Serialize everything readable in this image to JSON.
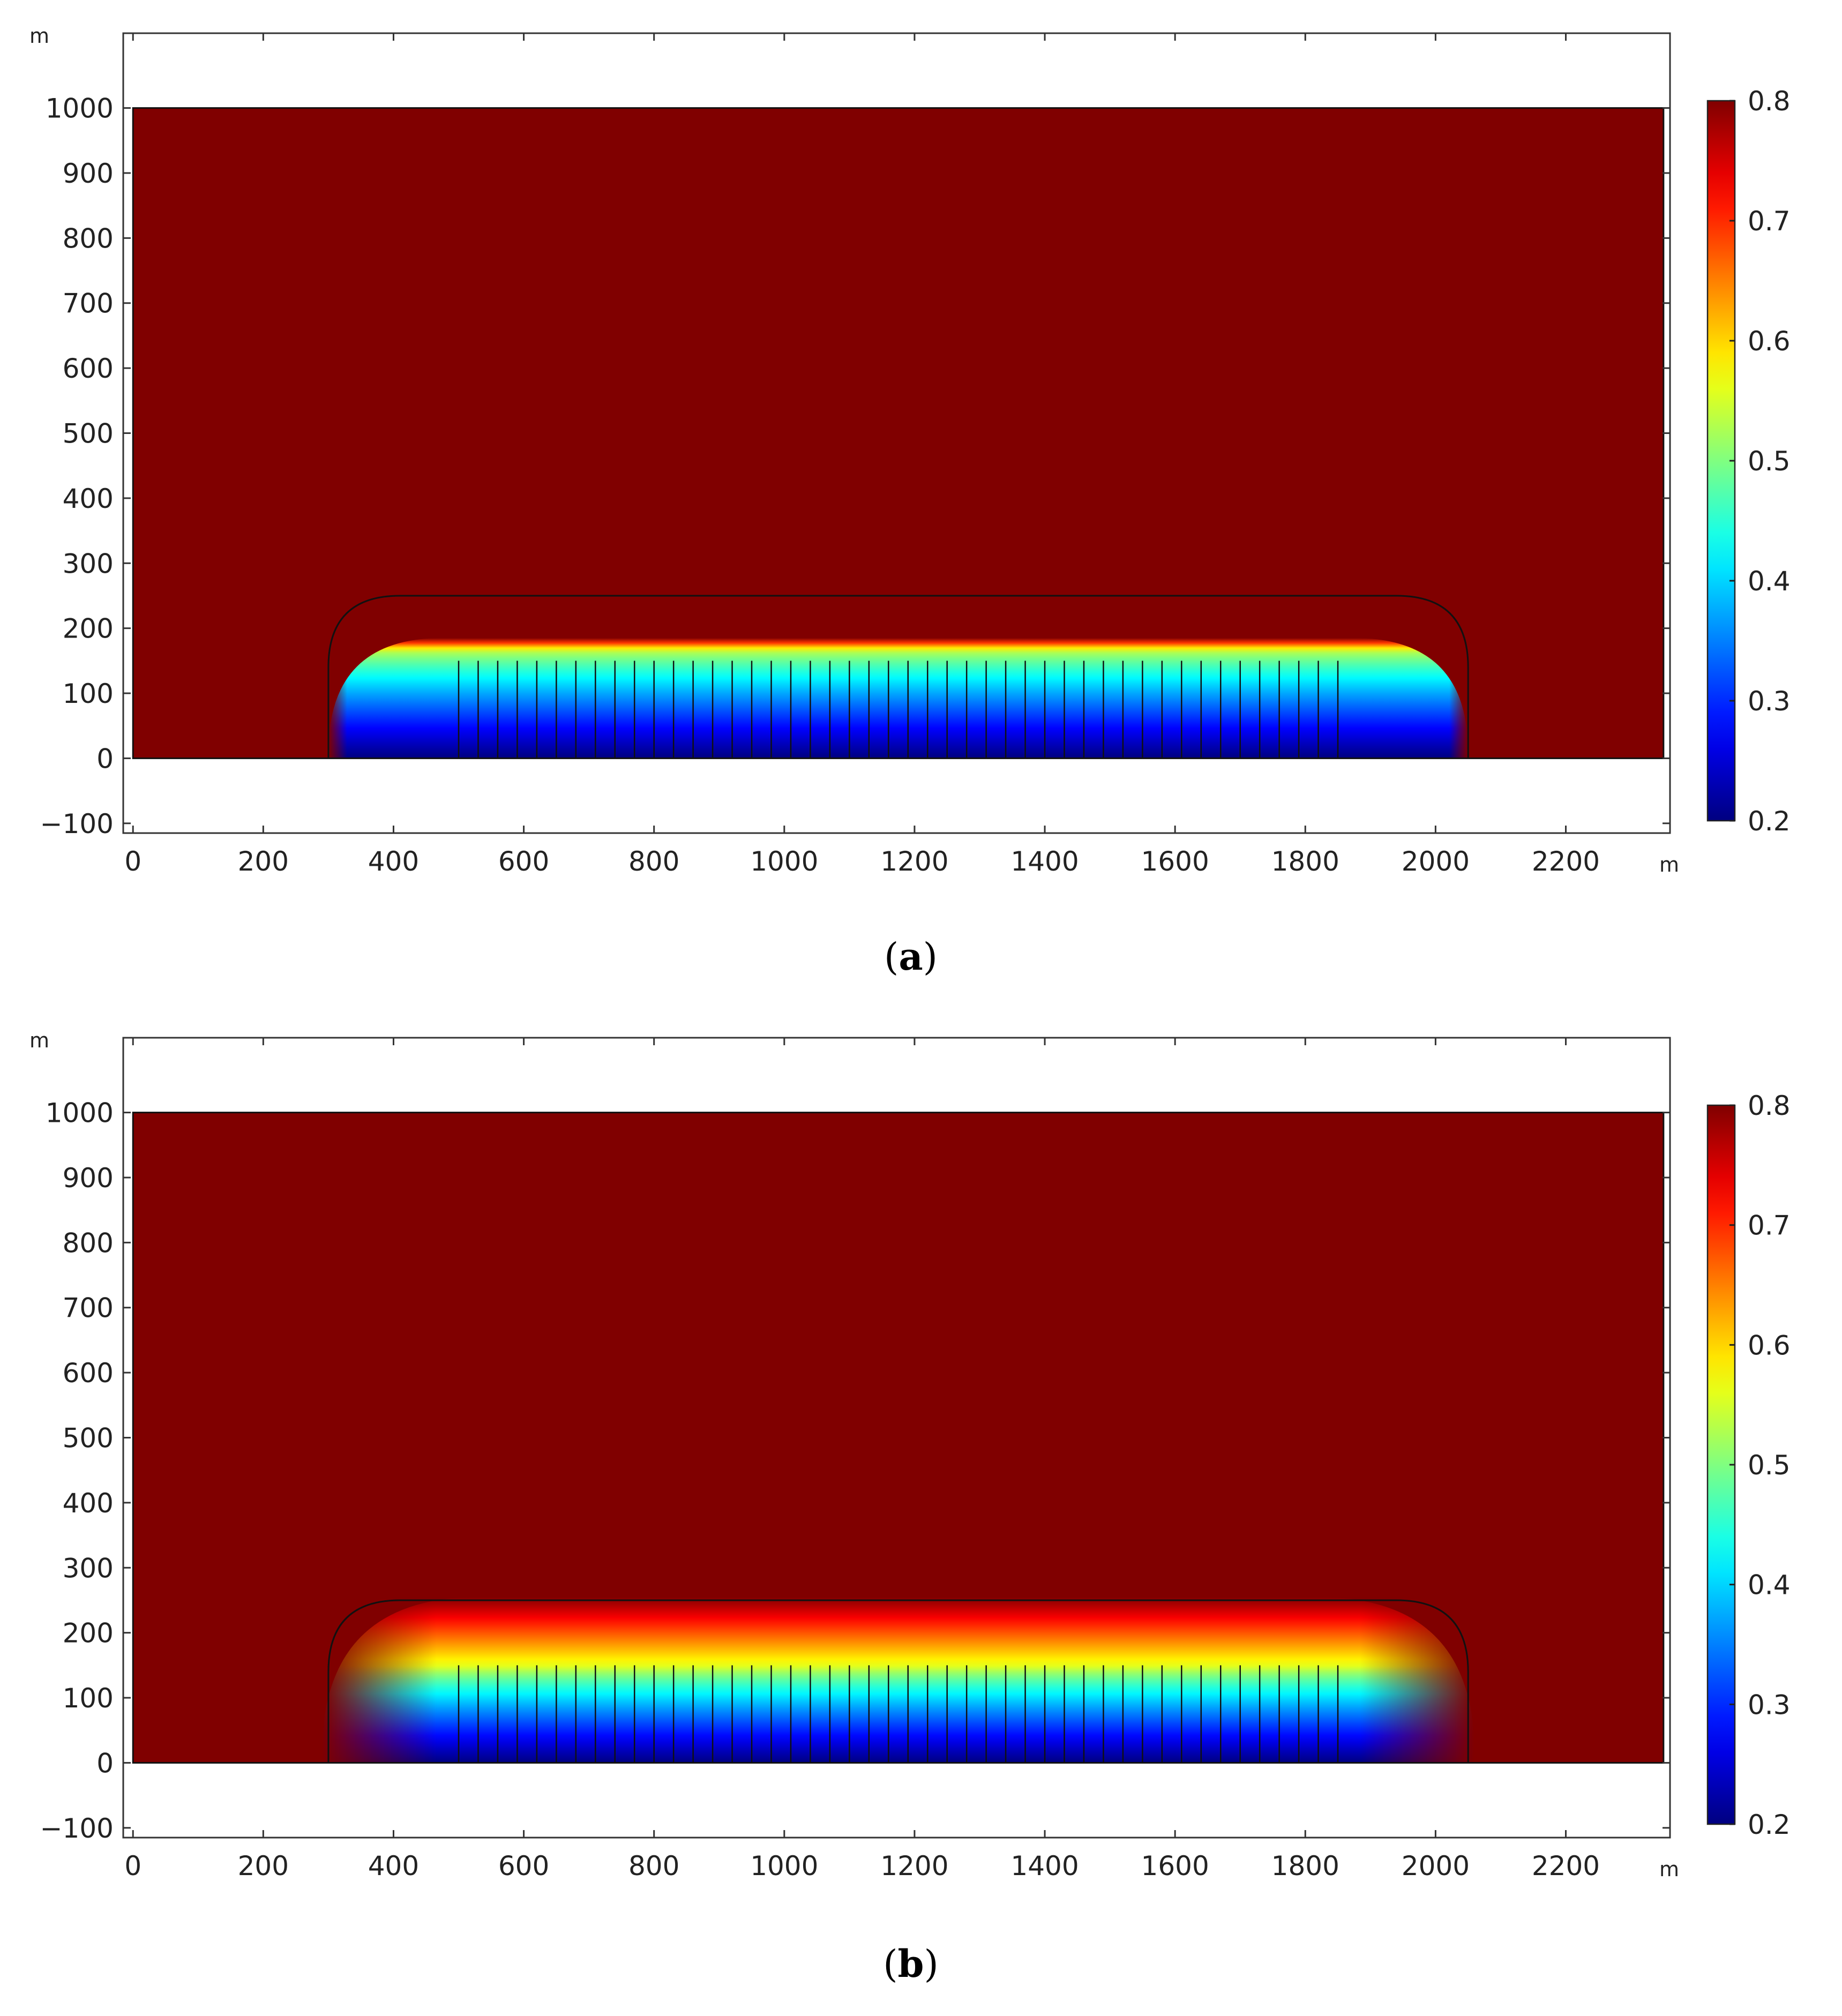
{
  "chart_data": [
    {
      "type": "heatmap",
      "panel_label": "a",
      "x_unit": "m",
      "y_unit": "m",
      "xlim": [
        -15,
        2360
      ],
      "ylim": [
        -115,
        1115
      ],
      "x_ticks": [
        0,
        200,
        400,
        600,
        800,
        1000,
        1200,
        1400,
        1600,
        1800,
        2000,
        2200
      ],
      "y_ticks": [
        -100,
        0,
        100,
        200,
        300,
        400,
        500,
        600,
        700,
        800,
        900,
        1000
      ],
      "domain": {
        "x": [
          0,
          2350
        ],
        "y": [
          0,
          1000
        ]
      },
      "zone_outline": {
        "x": [
          300,
          2050
        ],
        "top": 250,
        "corner_radius": 200
      },
      "plume": {
        "x": [
          300,
          2050
        ],
        "top": 185,
        "edge_width": 18,
        "min_value": 0.2,
        "background_value": 0.8
      },
      "wells": {
        "x_start": 500,
        "x_end": 1850,
        "count": 46,
        "top": 150,
        "bottom": 0
      },
      "colorbar": {
        "min": 0.2,
        "max": 0.8,
        "ticks": [
          0.2,
          0.3,
          0.4,
          0.5,
          0.6,
          0.7,
          0.8
        ]
      },
      "grid": false
    },
    {
      "type": "heatmap",
      "panel_label": "b",
      "x_unit": "m",
      "y_unit": "m",
      "xlim": [
        -15,
        2360
      ],
      "ylim": [
        -115,
        1115
      ],
      "x_ticks": [
        0,
        200,
        400,
        600,
        800,
        1000,
        1200,
        1400,
        1600,
        1800,
        2000,
        2200
      ],
      "y_ticks": [
        -100,
        0,
        100,
        200,
        300,
        400,
        500,
        600,
        700,
        800,
        900,
        1000
      ],
      "domain": {
        "x": [
          0,
          2350
        ],
        "y": [
          0,
          1000
        ]
      },
      "zone_outline": {
        "x": [
          300,
          2050
        ],
        "top": 250,
        "corner_radius": 200
      },
      "plume": {
        "x": [
          290,
          2060
        ],
        "top": 255,
        "edge_width": 110,
        "min_value": 0.2,
        "background_value": 0.8
      },
      "wells": {
        "x_start": 500,
        "x_end": 1850,
        "count": 46,
        "top": 150,
        "bottom": 0
      },
      "colorbar": {
        "min": 0.2,
        "max": 0.8,
        "ticks": [
          0.2,
          0.3,
          0.4,
          0.5,
          0.6,
          0.7,
          0.8
        ]
      },
      "grid": false
    }
  ],
  "colormap": "jet"
}
